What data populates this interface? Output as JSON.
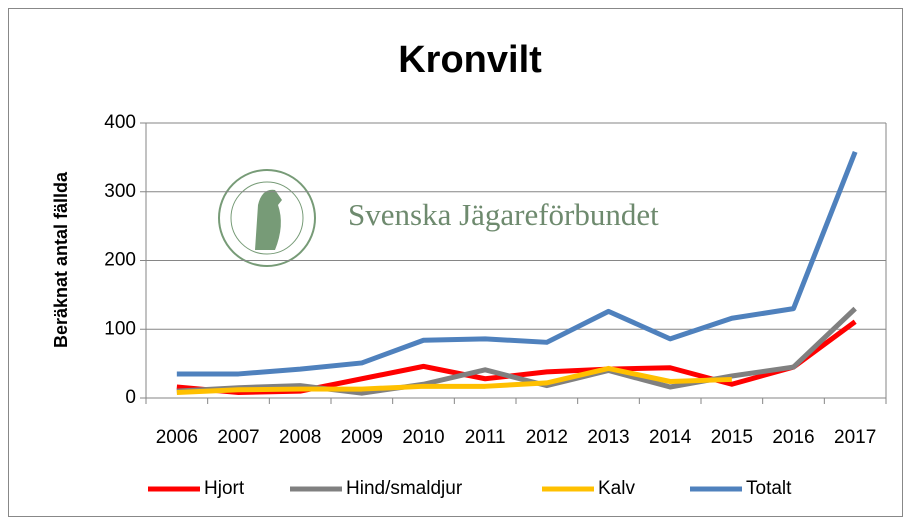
{
  "chart_data": {
    "type": "line",
    "title": "Kronvilt",
    "ylabel": "Beräknat antal fällda",
    "watermark": "Svenska Jägareförbundet",
    "categories": [
      "2006",
      "2007",
      "2008",
      "2009",
      "2010",
      "2011",
      "2012",
      "2013",
      "2014",
      "2015",
      "2016",
      "2017"
    ],
    "series": [
      {
        "name": "Hjort",
        "color": "#ff0000",
        "values": [
          16,
          8,
          10,
          28,
          46,
          28,
          38,
          42,
          44,
          20,
          45,
          111
        ]
      },
      {
        "name": "Hind/smaldjur",
        "color": "#808080",
        "values": [
          10,
          15,
          18,
          7,
          20,
          41,
          18,
          40,
          16,
          32,
          45,
          130
        ]
      },
      {
        "name": "Kalv",
        "color": "#ffc000",
        "values": [
          8,
          12,
          13,
          13,
          17,
          17,
          22,
          43,
          24,
          27,
          null,
          null
        ]
      },
      {
        "name": "Totalt",
        "color": "#4f81bd",
        "values": [
          35,
          35,
          42,
          51,
          84,
          86,
          81,
          126,
          86,
          116,
          130,
          358
        ]
      }
    ],
    "ylim": [
      0,
      400
    ],
    "yticks": [
      0,
      100,
      200,
      300,
      400
    ],
    "grid": true,
    "legend": "bottom"
  }
}
